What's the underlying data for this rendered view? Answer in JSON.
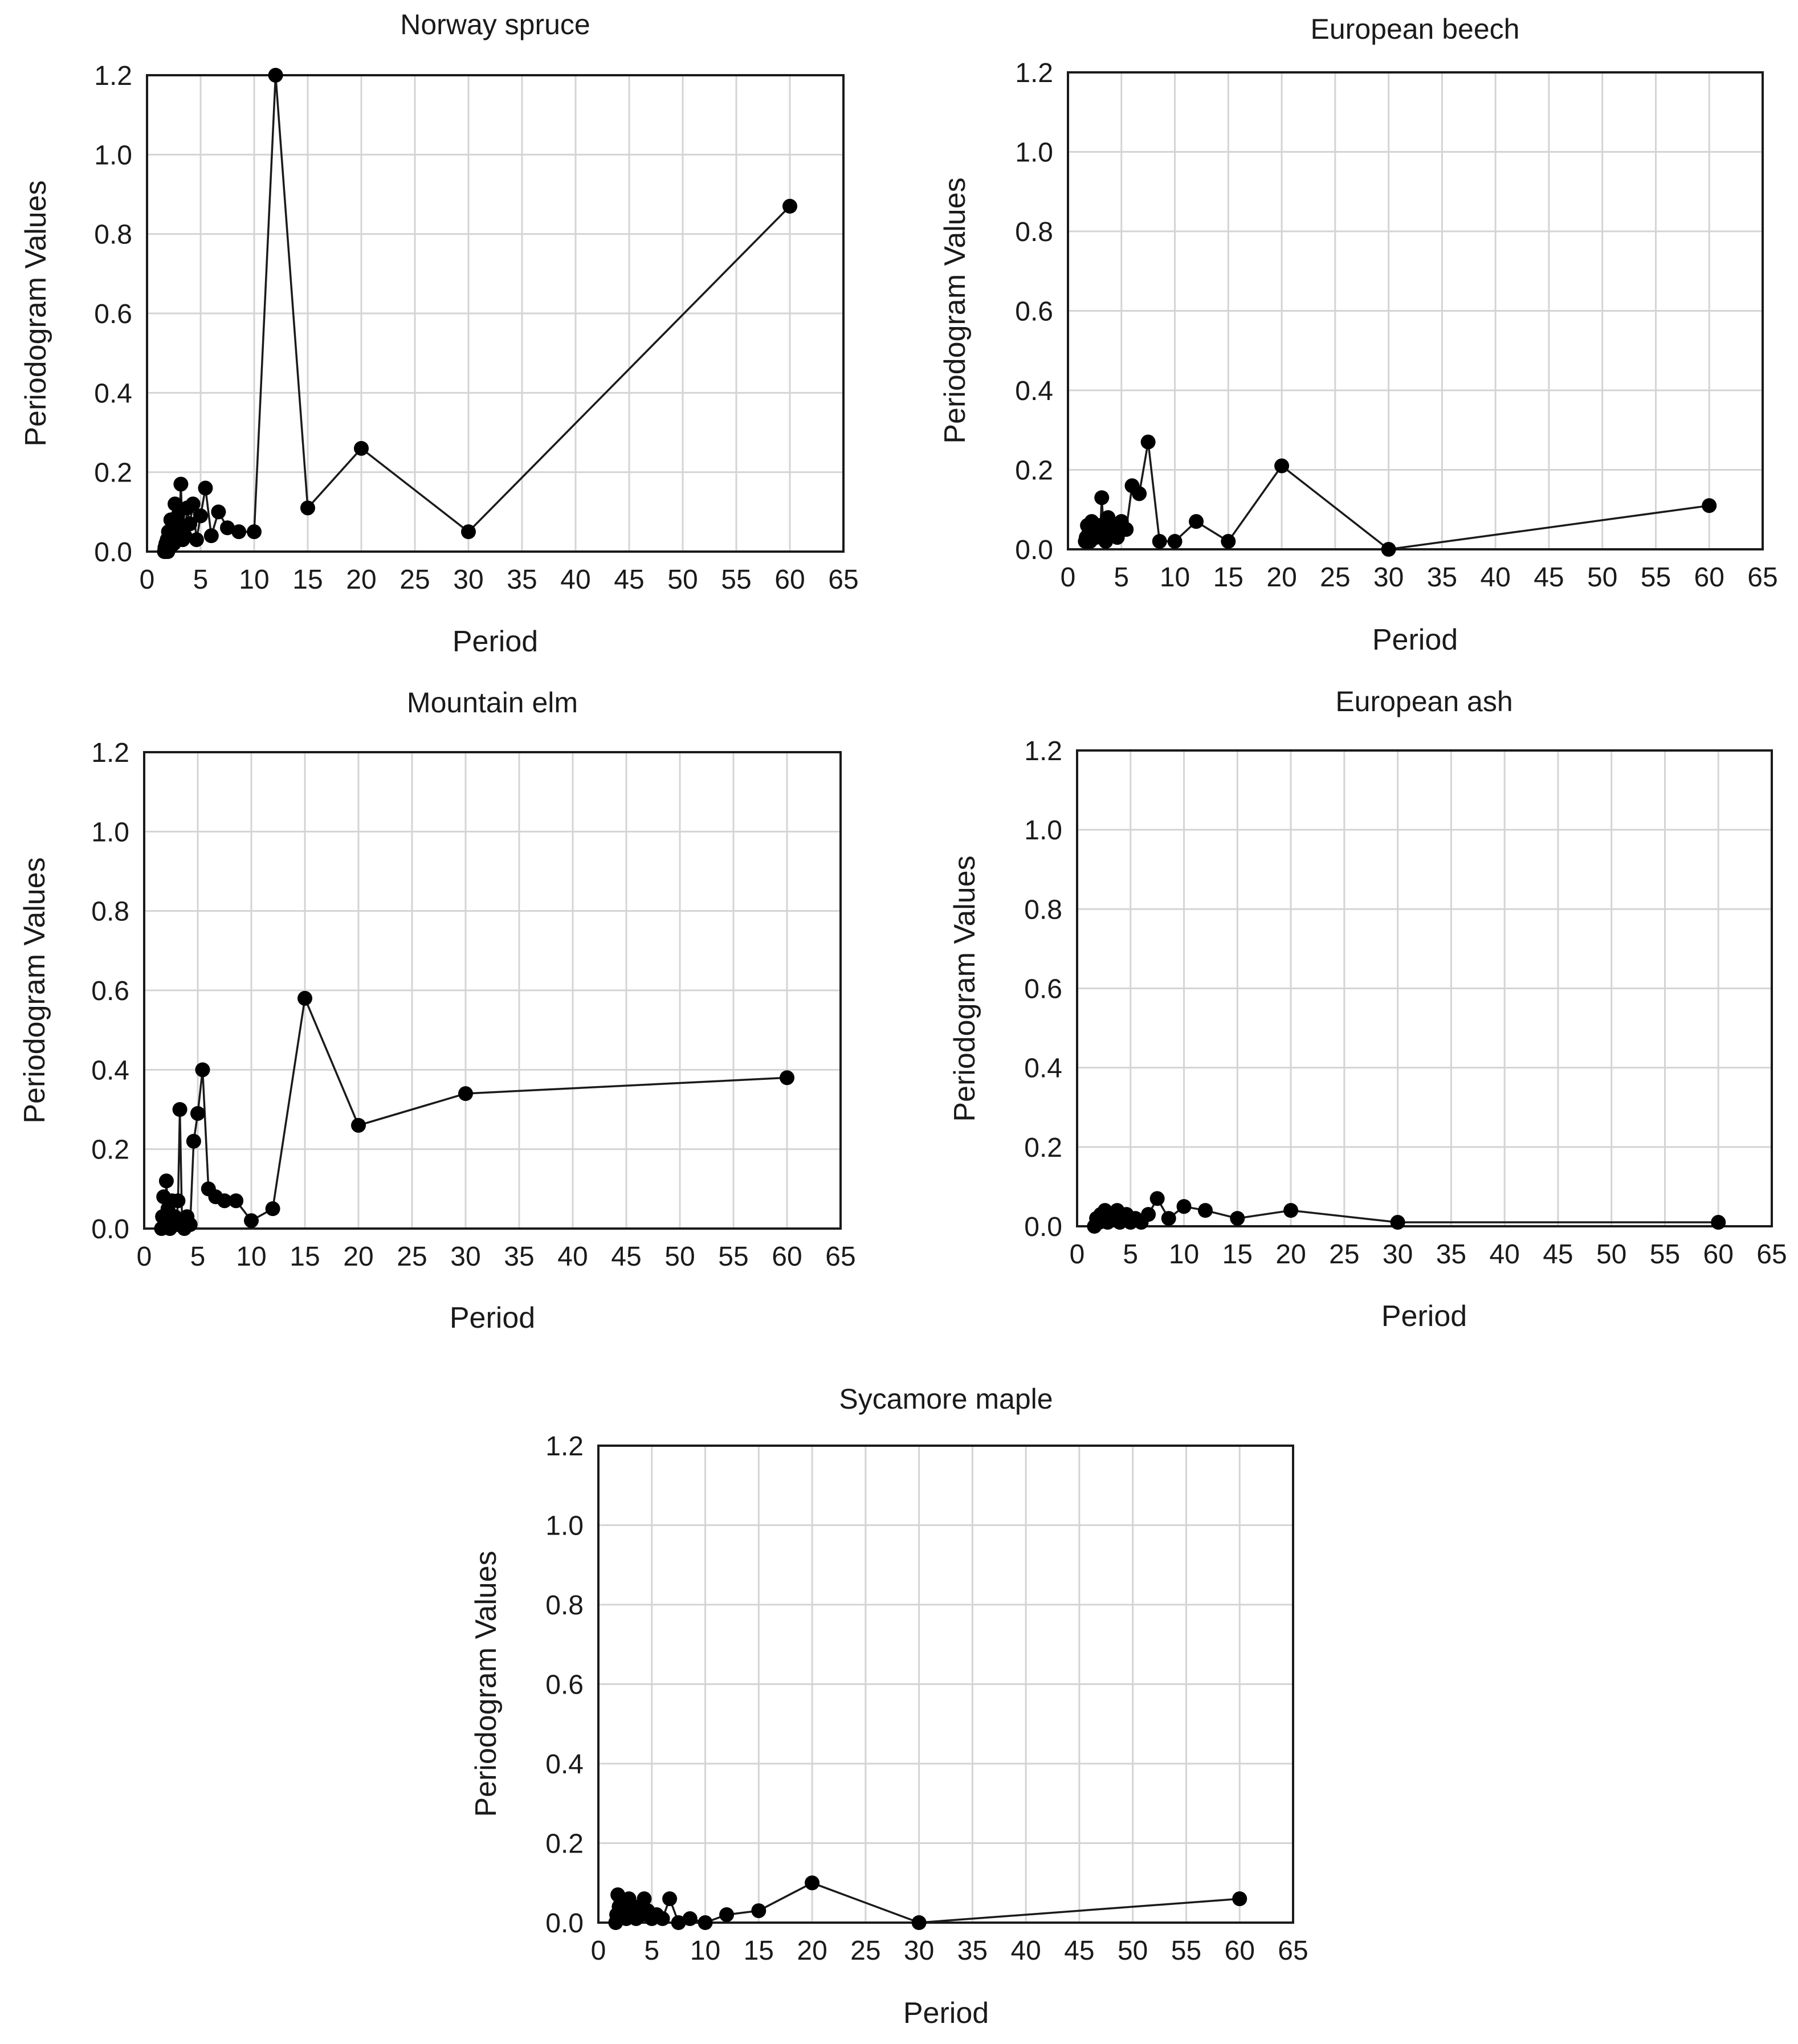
{
  "chart_data": [
    {
      "type": "line",
      "title": "Norway spruce",
      "xlabel": "Period",
      "ylabel": "Periodogram Values",
      "xlim": [
        0,
        65
      ],
      "ylim": [
        0,
        1.2
      ],
      "xticks": [
        "0",
        "5",
        "10",
        "15",
        "20",
        "25",
        "30",
        "35",
        "40",
        "45",
        "50",
        "55",
        "60",
        "65"
      ],
      "yticks": [
        "0.0",
        "0.2",
        "0.4",
        "0.6",
        "0.8",
        "1.0",
        "1.2"
      ],
      "grid": true,
      "series": [
        {
          "name": "Norway spruce",
          "x": [
            1.62,
            1.67,
            1.71,
            1.76,
            1.82,
            1.88,
            1.94,
            2.0,
            2.07,
            2.14,
            2.22,
            2.31,
            2.4,
            2.5,
            2.61,
            2.73,
            2.86,
            3.0,
            3.16,
            3.33,
            3.53,
            3.75,
            4.0,
            4.29,
            4.62,
            5.0,
            5.45,
            6.0,
            6.67,
            7.5,
            8.57,
            10.0,
            12.0,
            15.0,
            20.0,
            30.0,
            60.0
          ],
          "y": [
            0.0,
            0.01,
            0.0,
            0.02,
            0.01,
            0.03,
            0.0,
            0.05,
            0.02,
            0.01,
            0.08,
            0.03,
            0.06,
            0.02,
            0.12,
            0.04,
            0.09,
            0.06,
            0.17,
            0.03,
            0.04,
            0.11,
            0.07,
            0.12,
            0.03,
            0.09,
            0.16,
            0.04,
            0.1,
            0.06,
            0.05,
            0.05,
            1.2,
            0.11,
            0.26,
            0.05,
            0.87
          ]
        }
      ]
    },
    {
      "type": "line",
      "title": "European beech",
      "xlabel": "Period",
      "ylabel": "Periodogram Values",
      "xlim": [
        0,
        65
      ],
      "ylim": [
        0,
        1.2
      ],
      "xticks": [
        "0",
        "5",
        "10",
        "15",
        "20",
        "25",
        "30",
        "35",
        "40",
        "45",
        "50",
        "55",
        "60",
        "65"
      ],
      "yticks": [
        "0.0",
        "0.2",
        "0.4",
        "0.6",
        "0.8",
        "1.0",
        "1.2"
      ],
      "grid": true,
      "series": [
        {
          "name": "European beech",
          "x": [
            1.62,
            1.71,
            1.82,
            1.94,
            2.07,
            2.22,
            2.4,
            2.61,
            2.86,
            3.0,
            3.16,
            3.33,
            3.53,
            3.75,
            4.0,
            4.29,
            4.62,
            5.0,
            5.45,
            6.0,
            6.67,
            7.5,
            8.57,
            10.0,
            12.0,
            15.0,
            20.0,
            30.0,
            60.0
          ],
          "y": [
            0.02,
            0.03,
            0.06,
            0.04,
            0.02,
            0.07,
            0.05,
            0.03,
            0.06,
            0.04,
            0.13,
            0.05,
            0.02,
            0.08,
            0.04,
            0.06,
            0.03,
            0.07,
            0.05,
            0.16,
            0.14,
            0.27,
            0.02,
            0.02,
            0.07,
            0.02,
            0.21,
            0.0,
            0.11
          ]
        }
      ]
    },
    {
      "type": "line",
      "title": "Mountain elm",
      "xlabel": "Period",
      "ylabel": "Periodogram Values",
      "xlim": [
        0,
        65
      ],
      "ylim": [
        0,
        1.2
      ],
      "xticks": [
        "0",
        "5",
        "10",
        "15",
        "20",
        "25",
        "30",
        "35",
        "40",
        "45",
        "50",
        "55",
        "60",
        "65"
      ],
      "yticks": [
        "0.0",
        "0.2",
        "0.4",
        "0.6",
        "0.8",
        "1.0",
        "1.2"
      ],
      "grid": true,
      "series": [
        {
          "name": "Mountain elm",
          "x": [
            1.62,
            1.71,
            1.82,
            1.94,
            2.07,
            2.22,
            2.4,
            2.61,
            2.86,
            3.0,
            3.16,
            3.33,
            3.53,
            3.75,
            4.0,
            4.29,
            4.62,
            5.0,
            5.45,
            6.0,
            6.67,
            7.5,
            8.57,
            10.0,
            12.0,
            15.0,
            20.0,
            30.0,
            60.0
          ],
          "y": [
            0.0,
            0.03,
            0.08,
            0.02,
            0.12,
            0.05,
            0.0,
            0.07,
            0.03,
            0.01,
            0.07,
            0.3,
            0.02,
            0.0,
            0.03,
            0.01,
            0.22,
            0.29,
            0.4,
            0.1,
            0.08,
            0.07,
            0.07,
            0.02,
            0.05,
            0.58,
            0.26,
            0.34,
            0.38
          ]
        }
      ]
    },
    {
      "type": "line",
      "title": "European ash",
      "xlabel": "Period",
      "ylabel": "Periodogram Values",
      "xlim": [
        0,
        65
      ],
      "ylim": [
        0,
        1.2
      ],
      "xticks": [
        "0",
        "5",
        "10",
        "15",
        "20",
        "25",
        "30",
        "35",
        "40",
        "45",
        "50",
        "55",
        "60",
        "65"
      ],
      "yticks": [
        "0.0",
        "0.2",
        "0.4",
        "0.6",
        "0.8",
        "1.0",
        "1.2"
      ],
      "grid": true,
      "series": [
        {
          "name": "European ash",
          "x": [
            1.62,
            1.82,
            2.07,
            2.22,
            2.4,
            2.61,
            2.86,
            3.16,
            3.53,
            3.75,
            4.0,
            4.29,
            4.62,
            5.0,
            5.45,
            6.0,
            6.67,
            7.5,
            8.57,
            10.0,
            12.0,
            15.0,
            20.0,
            30.0,
            60.0
          ],
          "y": [
            0.0,
            0.02,
            0.01,
            0.03,
            0.02,
            0.04,
            0.01,
            0.03,
            0.02,
            0.04,
            0.01,
            0.02,
            0.03,
            0.01,
            0.02,
            0.01,
            0.03,
            0.07,
            0.02,
            0.05,
            0.04,
            0.02,
            0.04,
            0.01,
            0.01
          ]
        }
      ]
    },
    {
      "type": "line",
      "title": "Sycamore maple",
      "xlabel": "Period",
      "ylabel": "Periodogram Values",
      "xlim": [
        0,
        65
      ],
      "ylim": [
        0,
        1.2
      ],
      "xticks": [
        "0",
        "5",
        "10",
        "15",
        "20",
        "25",
        "30",
        "35",
        "40",
        "45",
        "50",
        "55",
        "60",
        "65"
      ],
      "yticks": [
        "0.0",
        "0.2",
        "0.4",
        "0.6",
        "0.8",
        "1.0",
        "1.2"
      ],
      "grid": true,
      "series": [
        {
          "name": "Sycamore maple",
          "x": [
            1.62,
            1.71,
            1.82,
            1.94,
            2.07,
            2.22,
            2.4,
            2.61,
            2.86,
            3.0,
            3.16,
            3.33,
            3.53,
            3.75,
            4.0,
            4.29,
            4.62,
            5.0,
            5.45,
            6.0,
            6.67,
            7.5,
            8.57,
            10.0,
            12.0,
            15.0,
            20.0,
            30.0,
            60.0
          ],
          "y": [
            0.0,
            0.02,
            0.07,
            0.04,
            0.06,
            0.02,
            0.05,
            0.01,
            0.06,
            0.03,
            0.02,
            0.04,
            0.01,
            0.03,
            0.02,
            0.06,
            0.03,
            0.01,
            0.02,
            0.01,
            0.06,
            0.0,
            0.01,
            0.0,
            0.02,
            0.03,
            0.1,
            0.0,
            0.06
          ]
        }
      ]
    }
  ]
}
